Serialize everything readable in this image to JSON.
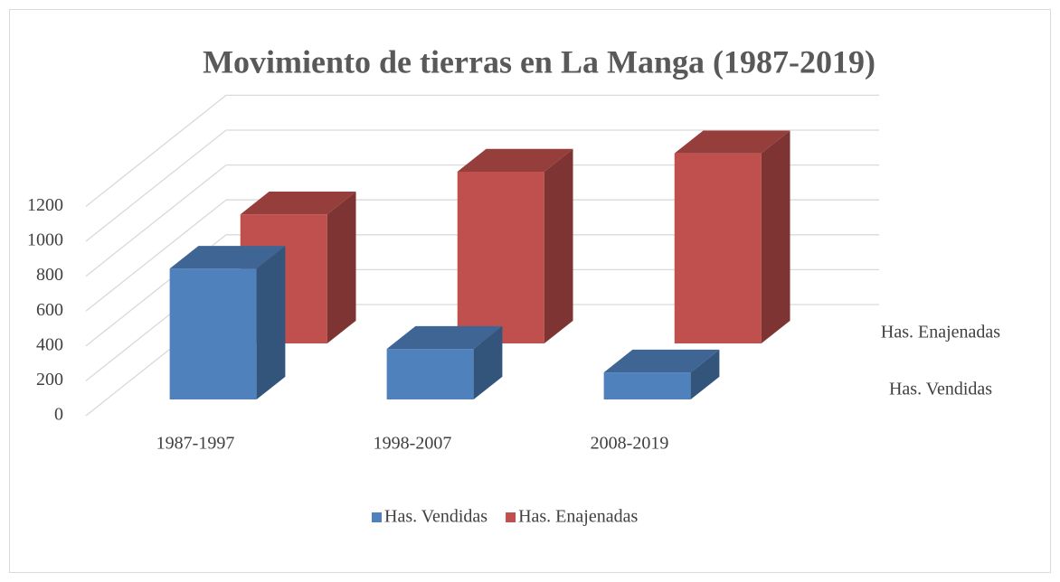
{
  "chart_data": {
    "type": "bar3d",
    "title": "Movimiento de tierras en La Manga (1987-2019)",
    "categories": [
      "1987-1997",
      "1998-2007",
      "2008-2019"
    ],
    "series": [
      {
        "name": "Has. Vendidas",
        "color": "#4f81bd",
        "values": [
          750,
          290,
          155
        ]
      },
      {
        "name": "Has. Enajenadas",
        "color": "#c0504d",
        "values": [
          740,
          985,
          1090
        ]
      }
    ],
    "ylim": [
      0,
      1200
    ],
    "yticks": [
      0,
      200,
      400,
      600,
      800,
      1000,
      1200
    ],
    "grid": true,
    "legend": "bottom"
  }
}
